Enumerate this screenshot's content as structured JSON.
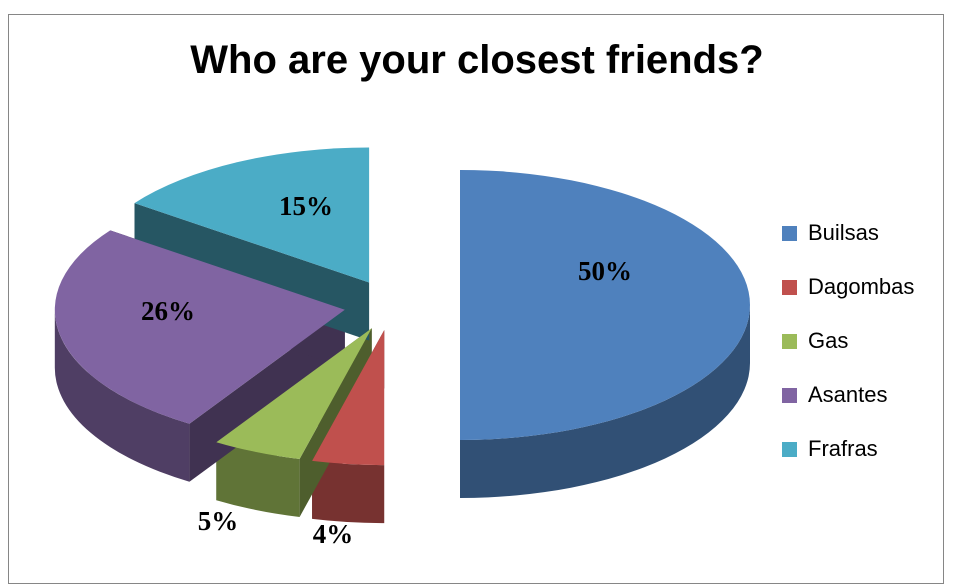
{
  "chart_data": {
    "type": "pie",
    "title": "Who are your closest friends?",
    "categories": [
      "Builsas",
      "Dagombas",
      "Gas",
      "Asantes",
      "Frafras"
    ],
    "values": [
      50,
      4,
      5,
      26,
      15
    ],
    "data_labels": [
      "50%",
      "4%",
      "5%",
      "26%",
      "15%"
    ],
    "colors": [
      "#4F81BD",
      "#C0504D",
      "#9BBB59",
      "#8064A2",
      "#4BACC6"
    ],
    "exploded": true,
    "three_d": true,
    "legend_position": "right"
  }
}
